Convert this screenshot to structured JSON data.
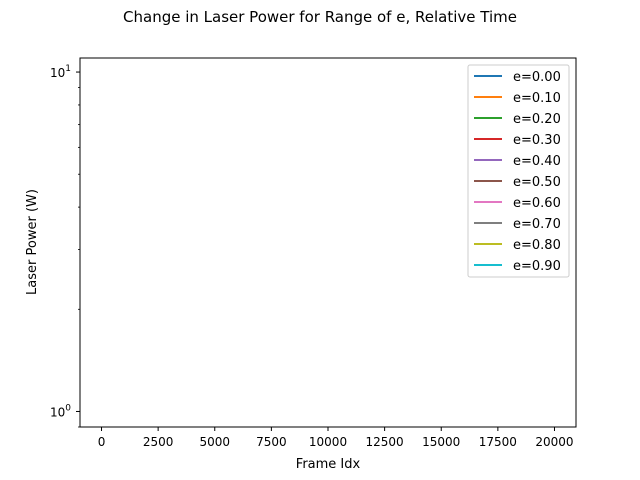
{
  "chart_data": {
    "type": "line",
    "title": "Change in Laser Power for Range of e, Relative Time",
    "xlabel": "Frame Idx",
    "ylabel": "Laser Power (W)",
    "xlim": [
      -950,
      20950
    ],
    "ylim": [
      0.9,
      11
    ],
    "yscale": "log",
    "x_ticks": [
      0,
      2500,
      5000,
      7500,
      10000,
      12500,
      15000,
      17500,
      20000
    ],
    "x_tick_labels": [
      "0",
      "2500",
      "5000",
      "7500",
      "10000",
      "12500",
      "15000",
      "17500",
      "20000"
    ],
    "y_ticks": [
      {
        "value": 1,
        "base": "10",
        "exp": "0"
      },
      {
        "value": 10,
        "base": "10",
        "exp": "1"
      }
    ],
    "grid": false,
    "legend_position": "top-right",
    "series": [
      {
        "name": "e=0.00",
        "color": "#1f77b4",
        "x": [],
        "values": []
      },
      {
        "name": "e=0.10",
        "color": "#ff7f0e",
        "x": [],
        "values": []
      },
      {
        "name": "e=0.20",
        "color": "#2ca02c",
        "x": [],
        "values": []
      },
      {
        "name": "e=0.30",
        "color": "#d62728",
        "x": [],
        "values": []
      },
      {
        "name": "e=0.40",
        "color": "#9467bd",
        "x": [],
        "values": []
      },
      {
        "name": "e=0.50",
        "color": "#8c564b",
        "x": [],
        "values": []
      },
      {
        "name": "e=0.60",
        "color": "#e377c2",
        "x": [],
        "values": []
      },
      {
        "name": "e=0.70",
        "color": "#7f7f7f",
        "x": [],
        "values": []
      },
      {
        "name": "e=0.80",
        "color": "#bcbd22",
        "x": [],
        "values": []
      },
      {
        "name": "e=0.90",
        "color": "#17becf",
        "x": [],
        "values": []
      }
    ]
  }
}
